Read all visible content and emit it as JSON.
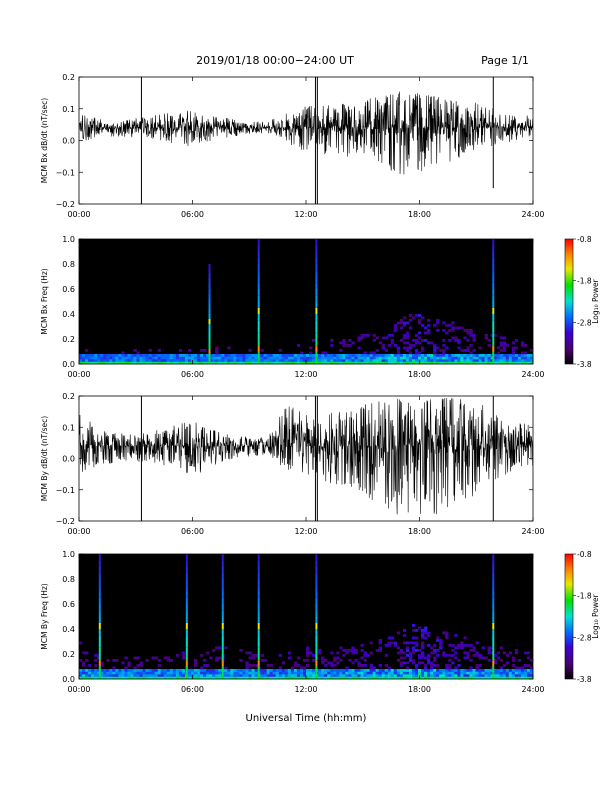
{
  "header": {
    "title": "2019/01/18  00:00−24:00 UT",
    "page": "Page 1/1"
  },
  "xaxis": {
    "label": "Universal Time (hh:mm)",
    "range": [
      0,
      24
    ],
    "ticks": [
      0,
      6,
      12,
      18,
      24
    ],
    "tick_labels": [
      "00:00",
      "06:00",
      "12:00",
      "18:00",
      "24:00"
    ]
  },
  "colorbar": {
    "label": "Log₁₀ Power",
    "range": [
      -3.8,
      -0.8
    ],
    "ticks": [
      -0.8,
      -1.8,
      -2.8,
      -3.8
    ],
    "tick_labels": [
      "-0.8",
      "-1.8",
      "-2.8",
      "-3.8"
    ]
  },
  "chart_data": [
    {
      "type": "line",
      "ylabel": "MCM Bx dB/dt (nT/sec)",
      "ylim": [
        -0.2,
        0.2
      ],
      "yticks": [
        -0.2,
        -0.1,
        0.0,
        0.1,
        0.2
      ],
      "ytick_labels": [
        "−0.2",
        "−0.1",
        "0.0",
        "0.1",
        "0.2"
      ],
      "baseline": 0.04,
      "series": [
        {
          "x": [
            0,
            1,
            2,
            3,
            4,
            5,
            6,
            7,
            8,
            9,
            10,
            11,
            12,
            13,
            14,
            15,
            16,
            17,
            18,
            19,
            20,
            21,
            22,
            23,
            24
          ],
          "upper": [
            0.09,
            0.07,
            0.06,
            0.07,
            0.08,
            0.09,
            0.1,
            0.08,
            0.07,
            0.06,
            0.06,
            0.09,
            0.11,
            0.12,
            0.12,
            0.13,
            0.15,
            0.16,
            0.15,
            0.14,
            0.13,
            0.12,
            0.1,
            0.08,
            0.08
          ],
          "lower": [
            -0.01,
            0.01,
            0.01,
            0.01,
            0.0,
            -0.01,
            -0.02,
            0.0,
            0.01,
            0.02,
            0.02,
            -0.01,
            -0.04,
            -0.05,
            -0.05,
            -0.06,
            -0.08,
            -0.12,
            -0.1,
            -0.08,
            -0.06,
            -0.05,
            -0.03,
            0.0,
            0.01
          ]
        }
      ],
      "spikes": [
        {
          "x": 3.3,
          "y": [
            -0.2,
            0.2
          ]
        },
        {
          "x": 12.5,
          "y": [
            -0.2,
            0.2
          ]
        },
        {
          "x": 12.6,
          "y": [
            -0.2,
            0.2
          ]
        },
        {
          "x": 21.9,
          "y": [
            -0.15,
            0.2
          ]
        }
      ]
    },
    {
      "type": "heatmap",
      "ylabel": "MCM Bx Freq (Hz)",
      "ylim": [
        0.0,
        1.0
      ],
      "yticks": [
        0.0,
        0.2,
        0.4,
        0.6,
        0.8,
        1.0
      ],
      "ytick_labels": [
        "0.0",
        "0.2",
        "0.4",
        "0.6",
        "0.8",
        "1.0"
      ],
      "activity": [
        0.25,
        0.2,
        0.2,
        0.2,
        0.2,
        0.2,
        0.25,
        0.25,
        0.2,
        0.2,
        0.2,
        0.3,
        0.35,
        0.35,
        0.4,
        0.45,
        0.55,
        0.7,
        0.6,
        0.55,
        0.45,
        0.4,
        0.35,
        0.3
      ],
      "stripes": [
        {
          "x": 6.9,
          "fmax": 0.8
        },
        {
          "x": 9.5,
          "fmax": 1.0
        },
        {
          "x": 12.55,
          "fmax": 1.0
        },
        {
          "x": 21.9,
          "fmax": 1.0
        }
      ]
    },
    {
      "type": "line",
      "ylabel": "MCM By dB/dt (nT/sec)",
      "ylim": [
        -0.2,
        0.2
      ],
      "yticks": [
        -0.2,
        -0.1,
        0.0,
        0.1,
        0.2
      ],
      "ytick_labels": [
        "−0.2",
        "−0.1",
        "0.0",
        "0.1",
        "0.2"
      ],
      "baseline": 0.04,
      "series": [
        {
          "x": [
            0,
            1,
            2,
            3,
            4,
            5,
            6,
            7,
            8,
            9,
            10,
            11,
            12,
            13,
            14,
            15,
            16,
            17,
            18,
            19,
            20,
            21,
            22,
            23,
            24
          ],
          "upper": [
            0.15,
            0.1,
            0.08,
            0.08,
            0.09,
            0.11,
            0.12,
            0.1,
            0.08,
            0.07,
            0.07,
            0.18,
            0.14,
            0.14,
            0.16,
            0.18,
            0.2,
            0.2,
            0.2,
            0.2,
            0.2,
            0.18,
            0.16,
            0.12,
            0.11
          ],
          "lower": [
            -0.05,
            -0.03,
            -0.01,
            -0.01,
            -0.02,
            -0.03,
            -0.06,
            -0.03,
            -0.01,
            0.0,
            0.01,
            -0.06,
            -0.07,
            -0.08,
            -0.1,
            -0.12,
            -0.15,
            -0.2,
            -0.2,
            -0.18,
            -0.16,
            -0.12,
            -0.08,
            -0.04,
            -0.03
          ]
        }
      ],
      "spikes": [
        {
          "x": 3.3,
          "y": [
            -0.2,
            0.2
          ]
        },
        {
          "x": 12.5,
          "y": [
            -0.2,
            0.2
          ]
        },
        {
          "x": 12.6,
          "y": [
            -0.2,
            0.2
          ]
        },
        {
          "x": 21.9,
          "y": [
            -0.2,
            0.2
          ]
        }
      ]
    },
    {
      "type": "heatmap",
      "ylabel": "MCM By Freq (Hz)",
      "ylim": [
        0.0,
        1.0
      ],
      "yticks": [
        0.0,
        0.2,
        0.4,
        0.6,
        0.8,
        1.0
      ],
      "ytick_labels": [
        "0.0",
        "0.2",
        "0.4",
        "0.6",
        "0.8",
        "1.0"
      ],
      "activity": [
        0.55,
        0.4,
        0.3,
        0.3,
        0.35,
        0.35,
        0.4,
        0.45,
        0.4,
        0.35,
        0.3,
        0.4,
        0.45,
        0.45,
        0.45,
        0.5,
        0.6,
        0.75,
        0.65,
        0.6,
        0.55,
        0.45,
        0.4,
        0.35
      ],
      "stripes": [
        {
          "x": 1.1,
          "fmax": 1.0
        },
        {
          "x": 5.7,
          "fmax": 1.0
        },
        {
          "x": 7.6,
          "fmax": 1.0
        },
        {
          "x": 9.5,
          "fmax": 1.0
        },
        {
          "x": 12.55,
          "fmax": 1.0
        },
        {
          "x": 21.9,
          "fmax": 1.0
        }
      ]
    }
  ]
}
